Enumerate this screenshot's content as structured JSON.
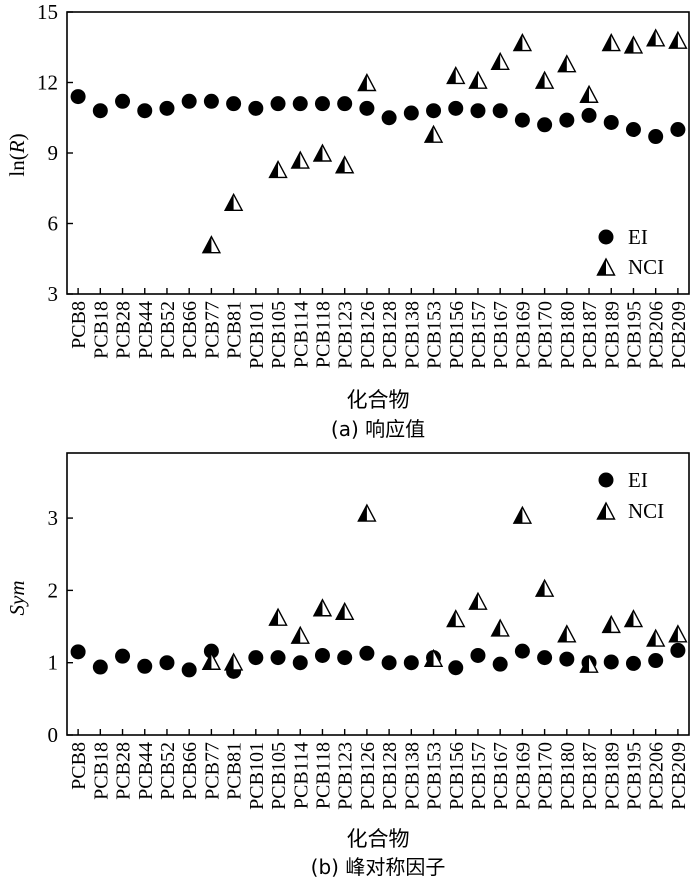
{
  "chart_data": [
    {
      "type": "scatter",
      "xlabel": "化合物",
      "ylabel": "ln(R)",
      "ylabel_prefix": "ln(",
      "ylabel_var": "R",
      "ylabel_suffix": ")",
      "caption": "(a) 响应值",
      "ylim": [
        3,
        15
      ],
      "yticks": [
        3,
        6,
        9,
        12,
        15
      ],
      "grid": false,
      "legend_position": "bottom-right",
      "categories": [
        "PCB8",
        "PCB18",
        "PCB28",
        "PCB44",
        "PCB52",
        "PCB66",
        "PCB77",
        "PCB81",
        "PCB101",
        "PCB105",
        "PCB114",
        "PCB118",
        "PCB123",
        "PCB126",
        "PCB128",
        "PCB138",
        "PCB153",
        "PCB156",
        "PCB157",
        "PCB167",
        "PCB169",
        "PCB170",
        "PCB180",
        "PCB187",
        "PCB189",
        "PCB195",
        "PCB206",
        "PCB209"
      ],
      "series": [
        {
          "name": "EI",
          "marker": "circle",
          "values": [
            11.4,
            10.8,
            11.2,
            10.8,
            10.9,
            11.2,
            11.2,
            11.1,
            10.9,
            11.1,
            11.1,
            11.1,
            11.1,
            10.9,
            10.5,
            10.7,
            10.8,
            10.9,
            10.8,
            10.8,
            10.4,
            10.2,
            10.4,
            10.6,
            10.3,
            10.0,
            9.7,
            10.0
          ]
        },
        {
          "name": "NCI",
          "marker": "half-triangle",
          "values": [
            null,
            null,
            null,
            null,
            null,
            null,
            5.1,
            6.9,
            null,
            8.3,
            8.7,
            9.0,
            8.5,
            12.0,
            null,
            null,
            9.8,
            12.3,
            12.1,
            12.9,
            13.7,
            12.1,
            12.8,
            11.5,
            13.7,
            13.6,
            13.9,
            13.8
          ]
        }
      ]
    },
    {
      "type": "scatter",
      "xlabel": "化合物",
      "ylabel": "Sym",
      "caption": "(b) 峰对称因子",
      "ylim": [
        0,
        3.9
      ],
      "yticks": [
        0,
        1,
        2,
        3
      ],
      "grid": false,
      "legend_position": "top-right",
      "categories": [
        "PCB8",
        "PCB18",
        "PCB28",
        "PCB44",
        "PCB52",
        "PCB66",
        "PCB77",
        "PCB81",
        "PCB101",
        "PCB105",
        "PCB114",
        "PCB118",
        "PCB123",
        "PCB126",
        "PCB128",
        "PCB138",
        "PCB153",
        "PCB156",
        "PCB157",
        "PCB167",
        "PCB169",
        "PCB170",
        "PCB180",
        "PCB187",
        "PCB189",
        "PCB195",
        "PCB206",
        "PCB209"
      ],
      "series": [
        {
          "name": "EI",
          "marker": "circle",
          "values": [
            1.15,
            0.94,
            1.09,
            0.95,
            1.0,
            0.9,
            1.16,
            0.88,
            1.07,
            1.07,
            1.0,
            1.1,
            1.07,
            1.13,
            1.0,
            1.0,
            1.07,
            0.93,
            1.1,
            0.98,
            1.16,
            1.07,
            1.05,
            1.0,
            1.01,
            0.99,
            1.03,
            1.17
          ]
        },
        {
          "name": "NCI",
          "marker": "half-triangle",
          "values": [
            null,
            null,
            null,
            null,
            null,
            null,
            1.02,
            1.01,
            null,
            1.63,
            1.38,
            1.76,
            1.71,
            3.07,
            null,
            null,
            1.06,
            1.61,
            1.85,
            1.48,
            3.04,
            2.03,
            1.4,
            0.98,
            1.53,
            1.61,
            1.34,
            1.4
          ]
        }
      ]
    }
  ]
}
